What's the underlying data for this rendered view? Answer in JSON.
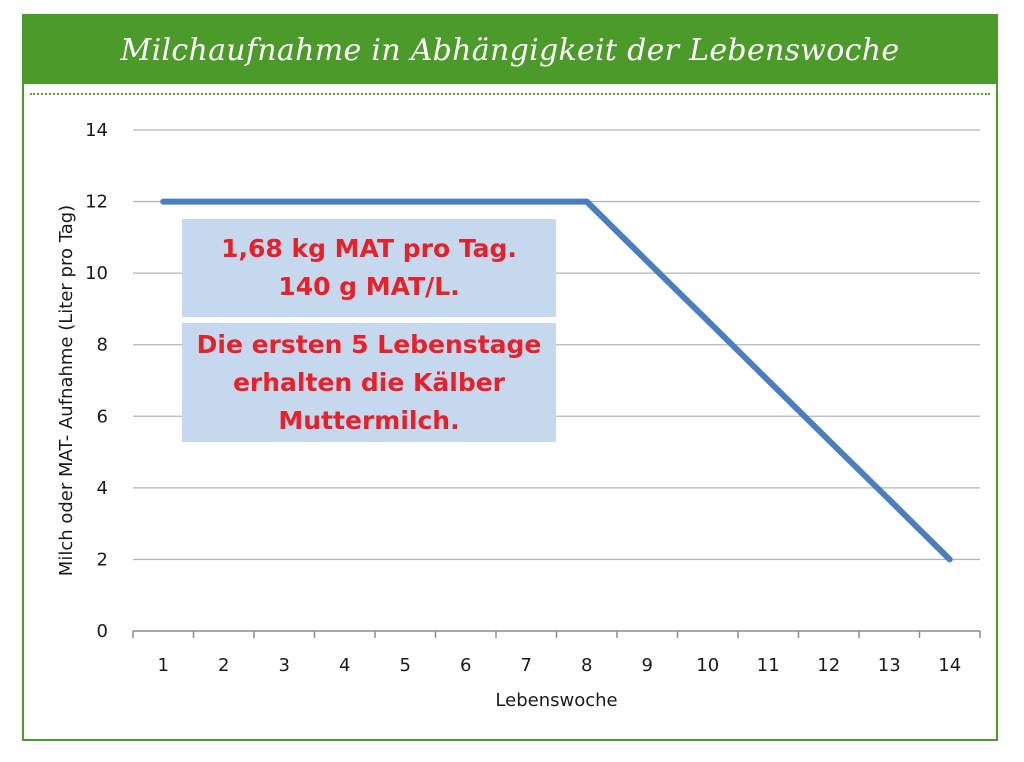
{
  "title": "Milchaufnahme in Abhängigkeit der Lebenswoche",
  "colors": {
    "header": "#4c9a2a",
    "line": "#4a7ebf",
    "grid": "#b5b5b5",
    "annotation_bg": "#c6d8ee",
    "annotation_text": "#e8202a"
  },
  "chart_data": {
    "type": "line",
    "xlabel": "Lebenswoche",
    "ylabel": "Milch oder MAT- Aufnahme (Liter pro Tag)",
    "categories": [
      "1",
      "2",
      "3",
      "4",
      "5",
      "6",
      "7",
      "8",
      "9",
      "10",
      "11",
      "12",
      "13",
      "14"
    ],
    "yticks": [
      "0",
      "2",
      "4",
      "6",
      "8",
      "10",
      "12",
      "14"
    ],
    "ylim": [
      0,
      14
    ],
    "grid": true,
    "series": [
      {
        "values": [
          12,
          12,
          12,
          12,
          12,
          12,
          12,
          12,
          10.33,
          8.67,
          7,
          5.33,
          3.67,
          2
        ]
      }
    ],
    "annotations": [
      {
        "lines": [
          "1,68 kg MAT pro Tag.",
          "140 g MAT/L."
        ]
      },
      {
        "lines": [
          "Die ersten 5 Lebenstage",
          "erhalten die Kälber",
          "Muttermilch."
        ]
      }
    ]
  }
}
